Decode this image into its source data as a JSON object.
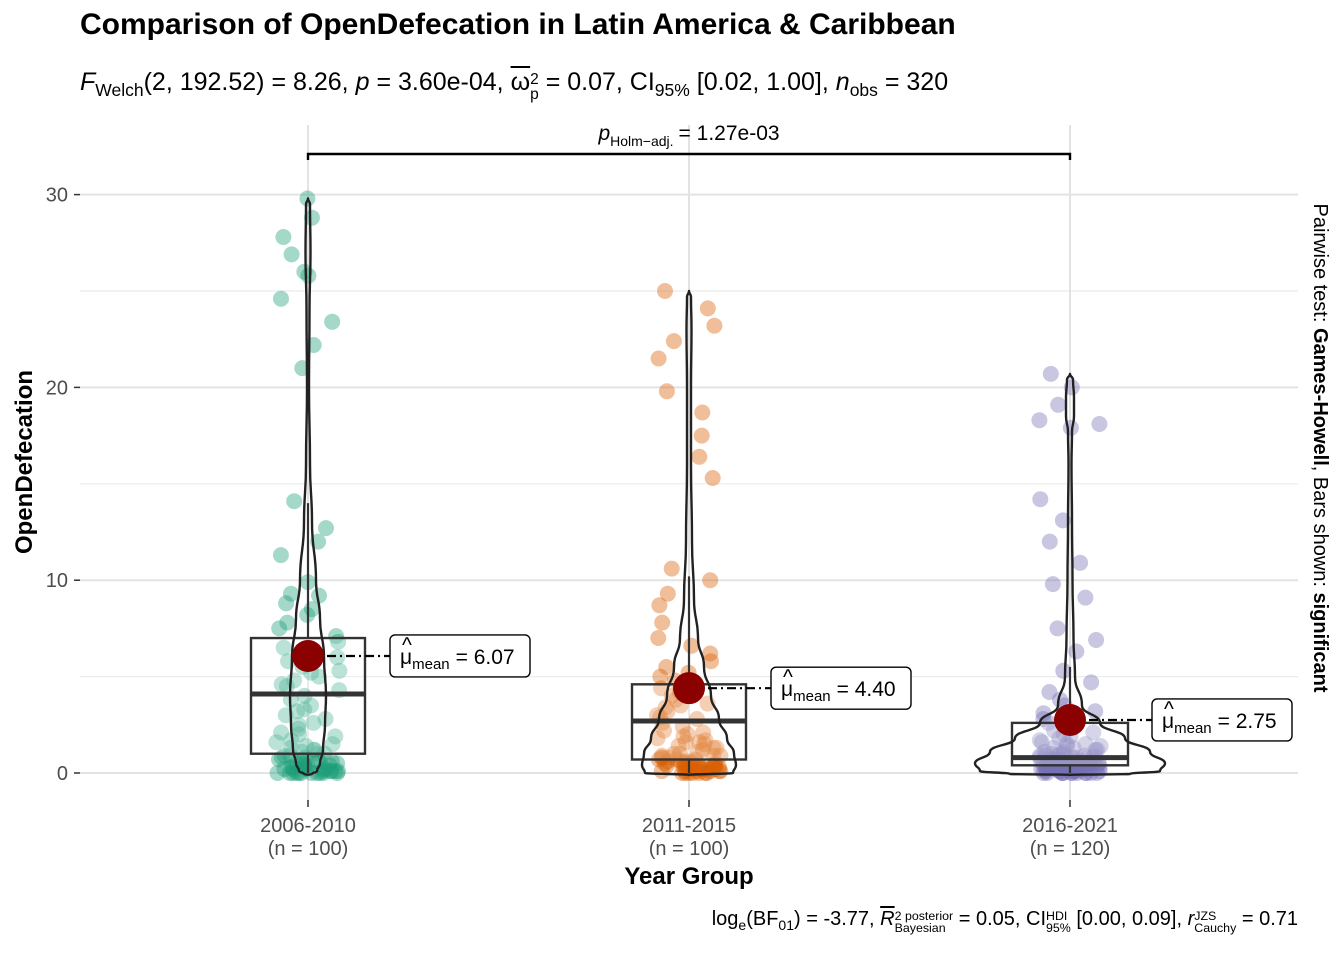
{
  "title": "Comparison of OpenDefecation in Latin America & Caribbean",
  "subtitle": {
    "stat_name": "F",
    "stat_sub": "Welch",
    "df": "(2, 192.52)",
    "stat_value": "= 8.26,",
    "p_label": "p",
    "p_value": "= 3.60e-04,",
    "effect_symbol": "ω",
    "effect_sup": "2",
    "effect_sub": "p",
    "effect_value": "= 0.07, CI",
    "ci_sub": "95%",
    "ci_value": "[0.02, 1.00],",
    "n_label": "n",
    "n_sub": "obs",
    "n_value": "= 320"
  },
  "caption": {
    "log_text": "log",
    "log_sub": "e",
    "bf_text": "(BF",
    "bf_sub": "01",
    "bf_value": ") = -3.77,",
    "r_label": "R",
    "r_sup": "2 posterior",
    "r_sub": "Bayesian",
    "r_value": "= 0.05, CI",
    "ci_sup": "HDI",
    "ci_sub": "95%",
    "ci_value": "[0.00, 0.09],",
    "rc_label": "r",
    "rc_sup": "JZS",
    "rc_sub": "Cauchy",
    "rc_value": "= 0.71"
  },
  "pairwise": {
    "p_label": "p",
    "p_sub": "Holm−adj.",
    "p_value": "= 1.27e-03"
  },
  "side_label": {
    "prefix": "Pairwise test: ",
    "test": "Games-Howell",
    "middle": ", Bars shown: ",
    "shown": "significant"
  },
  "chart_data": {
    "type": "violin-box-scatter",
    "title": "Comparison of OpenDefecation in Latin America & Caribbean",
    "xlabel": "Year Group",
    "ylabel": "OpenDefecation",
    "ylim": [
      -1.5,
      32.5
    ],
    "yticks": [
      0,
      10,
      20,
      30
    ],
    "grid": true,
    "mean_label_prefix": "μ",
    "mean_label_sub": "mean",
    "groups": [
      {
        "name": "2006-2010",
        "n_label": "(n = 100)",
        "color": "#1b9e77",
        "mean": 6.07,
        "mean_label": "= 6.07",
        "box": {
          "q1": 1.0,
          "median": 4.1,
          "q3": 7.0,
          "whisker_low": 0.0,
          "whisker_high": 14.0
        },
        "violin_max": 29.8,
        "points": [
          29.8,
          28.8,
          27.8,
          26.9,
          26.0,
          25.8,
          24.6,
          23.4,
          22.2,
          21.0,
          14.1,
          12.7,
          12.0,
          11.3,
          9.9,
          9.3,
          9.2,
          8.8,
          8.5,
          8.2,
          7.8,
          7.5,
          7.1,
          6.8,
          6.5,
          6.2,
          6.0,
          5.8,
          5.5,
          5.2,
          5.0,
          4.8,
          4.5,
          4.3,
          4.0,
          3.8,
          3.5,
          3.2,
          3.0,
          2.8,
          2.5,
          2.3,
          2.1,
          1.9,
          1.7,
          1.5,
          1.4,
          1.3,
          1.2,
          1.1,
          1.0,
          1.0,
          0.9,
          0.9,
          0.8,
          0.8,
          0.7,
          0.7,
          0.6,
          0.6,
          0.5,
          0.5,
          0.5,
          0.4,
          0.4,
          0.4,
          0.3,
          0.3,
          0.3,
          0.3,
          0.2,
          0.2,
          0.2,
          0.2,
          0.1,
          0.1,
          0.1,
          0.1,
          0.1,
          0.0,
          0.0,
          0.0,
          0.0,
          0.0,
          0.0,
          0.0,
          0.0,
          0.0,
          0.0,
          0.0,
          1.6,
          2.0,
          2.6,
          3.3,
          4.6,
          5.3,
          6.3,
          0.6,
          1.2,
          0.2
        ]
      },
      {
        "name": "2011-2015",
        "n_label": "(n = 100)",
        "color": "#d95f02",
        "mean": 4.4,
        "mean_label": "= 4.40",
        "box": {
          "q1": 0.7,
          "median": 2.7,
          "q3": 4.6,
          "whisker_low": 0.0,
          "whisker_high": 10.2
        },
        "violin_max": 25.0,
        "points": [
          25.0,
          24.1,
          23.2,
          22.4,
          21.5,
          19.8,
          18.7,
          17.5,
          16.4,
          15.3,
          10.6,
          10.0,
          9.3,
          8.7,
          7.8,
          7.0,
          6.6,
          6.2,
          5.8,
          5.5,
          5.2,
          5.0,
          4.8,
          4.6,
          4.4,
          4.2,
          4.0,
          3.8,
          3.6,
          3.4,
          3.2,
          3.0,
          2.8,
          2.6,
          2.4,
          2.2,
          2.0,
          1.9,
          1.8,
          1.7,
          1.6,
          1.5,
          1.4,
          1.3,
          1.2,
          1.1,
          1.0,
          1.0,
          0.9,
          0.9,
          0.8,
          0.8,
          0.8,
          0.7,
          0.7,
          0.7,
          0.6,
          0.6,
          0.6,
          0.5,
          0.5,
          0.5,
          0.5,
          0.4,
          0.4,
          0.4,
          0.4,
          0.3,
          0.3,
          0.3,
          0.3,
          0.3,
          0.2,
          0.2,
          0.2,
          0.2,
          0.2,
          0.1,
          0.1,
          0.1,
          0.1,
          0.1,
          0.1,
          0.0,
          0.0,
          0.0,
          0.0,
          0.0,
          0.0,
          0.0,
          1.3,
          2.1,
          2.9,
          3.5,
          4.7,
          0.9,
          1.6,
          0.4,
          0.2,
          0.6
        ]
      },
      {
        "name": "2016-2021",
        "n_label": "(n = 120)",
        "color": "#7570b3",
        "mean": 2.75,
        "mean_label": "= 2.75",
        "box": {
          "q1": 0.4,
          "median": 0.8,
          "q3": 2.6,
          "whisker_low": 0.0,
          "whisker_high": 5.5
        },
        "violin_max": 20.7,
        "points": [
          20.7,
          20.0,
          19.1,
          18.3,
          18.1,
          17.9,
          14.2,
          13.1,
          12.0,
          10.9,
          9.8,
          9.1,
          7.5,
          6.9,
          6.3,
          5.3,
          4.7,
          4.2,
          3.8,
          3.5,
          3.2,
          3.0,
          2.8,
          2.6,
          2.4,
          2.2,
          2.0,
          1.9,
          1.8,
          1.7,
          1.6,
          1.5,
          1.4,
          1.3,
          1.2,
          1.1,
          1.1,
          1.0,
          1.0,
          0.9,
          0.9,
          0.9,
          0.8,
          0.8,
          0.8,
          0.7,
          0.7,
          0.7,
          0.7,
          0.6,
          0.6,
          0.6,
          0.6,
          0.5,
          0.5,
          0.5,
          0.5,
          0.5,
          0.4,
          0.4,
          0.4,
          0.4,
          0.4,
          0.3,
          0.3,
          0.3,
          0.3,
          0.3,
          0.3,
          0.2,
          0.2,
          0.2,
          0.2,
          0.2,
          0.2,
          0.2,
          0.1,
          0.1,
          0.1,
          0.1,
          0.1,
          0.1,
          0.1,
          0.0,
          0.0,
          0.0,
          0.0,
          0.0,
          0.0,
          0.0,
          0.0,
          0.0,
          0.0,
          0.0,
          0.0,
          1.2,
          1.5,
          2.1,
          2.7,
          3.1,
          0.9,
          0.6,
          0.4,
          0.3,
          0.2,
          0.7,
          1.0,
          1.4,
          0.5,
          0.8,
          0.3,
          0.6,
          0.2,
          0.4,
          0.1,
          0.9,
          1.3,
          0.5,
          0.2,
          0.7
        ]
      }
    ]
  }
}
